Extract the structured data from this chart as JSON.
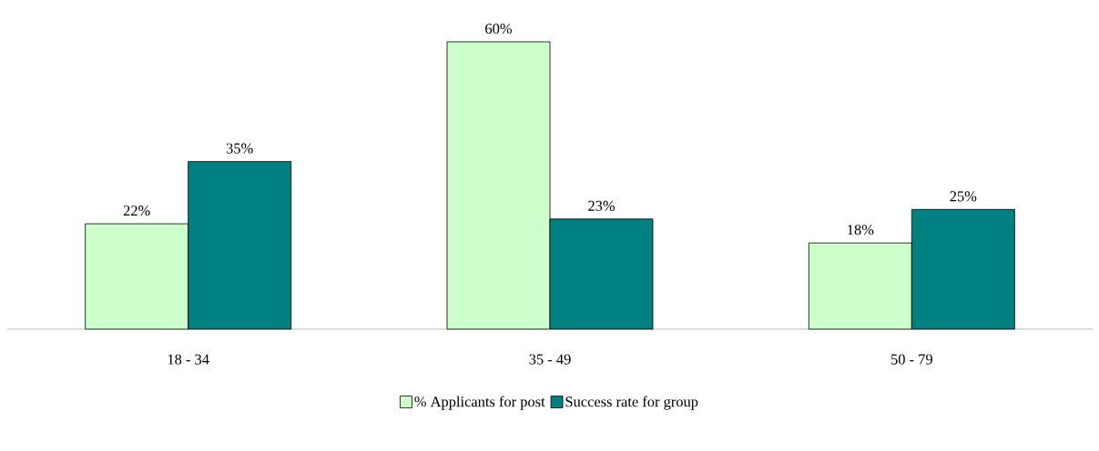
{
  "chart_data": {
    "type": "bar",
    "categories": [
      "18 - 34",
      "35 - 49",
      "50 - 79"
    ],
    "series": [
      {
        "name": "% Applicants for post",
        "color": "#ccffcc",
        "values": [
          22,
          60,
          18
        ],
        "value_labels": [
          "22%",
          "60%",
          "18%"
        ]
      },
      {
        "name": "Success rate for group",
        "color": "#008080",
        "values": [
          35,
          23,
          25
        ],
        "value_labels": [
          "35%",
          "23%",
          "25%"
        ]
      }
    ],
    "legend": "bottom"
  }
}
